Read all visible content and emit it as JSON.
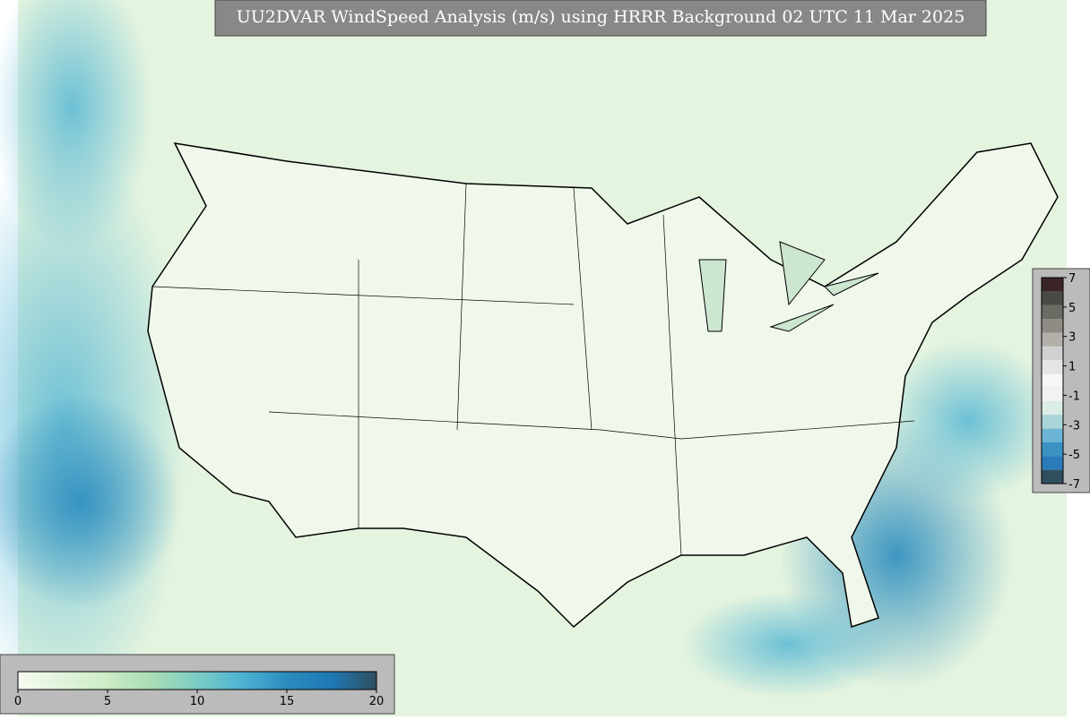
{
  "title": "UU2DVAR WindSpeed Analysis (m/s) using HRRR Background 02 UTC 11 Mar 2025",
  "colorbar_speed": {
    "range": [
      0,
      20
    ],
    "ticks": [
      0,
      5,
      10,
      15,
      20
    ],
    "colors": [
      "#f7fcf0",
      "#e0f3db",
      "#ccebc5",
      "#a8ddb5",
      "#7bccc4",
      "#4eb3d3",
      "#2b8cbe",
      "#1f78b4",
      "#2f4f5f"
    ]
  },
  "colorbar_diff": {
    "range": [
      -7,
      7
    ],
    "ticks": [
      7,
      5,
      3,
      1,
      -1,
      -3,
      -5,
      -7
    ],
    "colors": [
      "#2f4f5f",
      "#2b7bba",
      "#3a93c3",
      "#6cb4d3",
      "#a9d4d8",
      "#d9ece6",
      "#f2f2f2",
      "#f7f7f7",
      "#e6e6e6",
      "#d0d0d0",
      "#b2b0a8",
      "#8e8c84",
      "#6b6a63",
      "#4a4a44",
      "#3b2426"
    ]
  }
}
